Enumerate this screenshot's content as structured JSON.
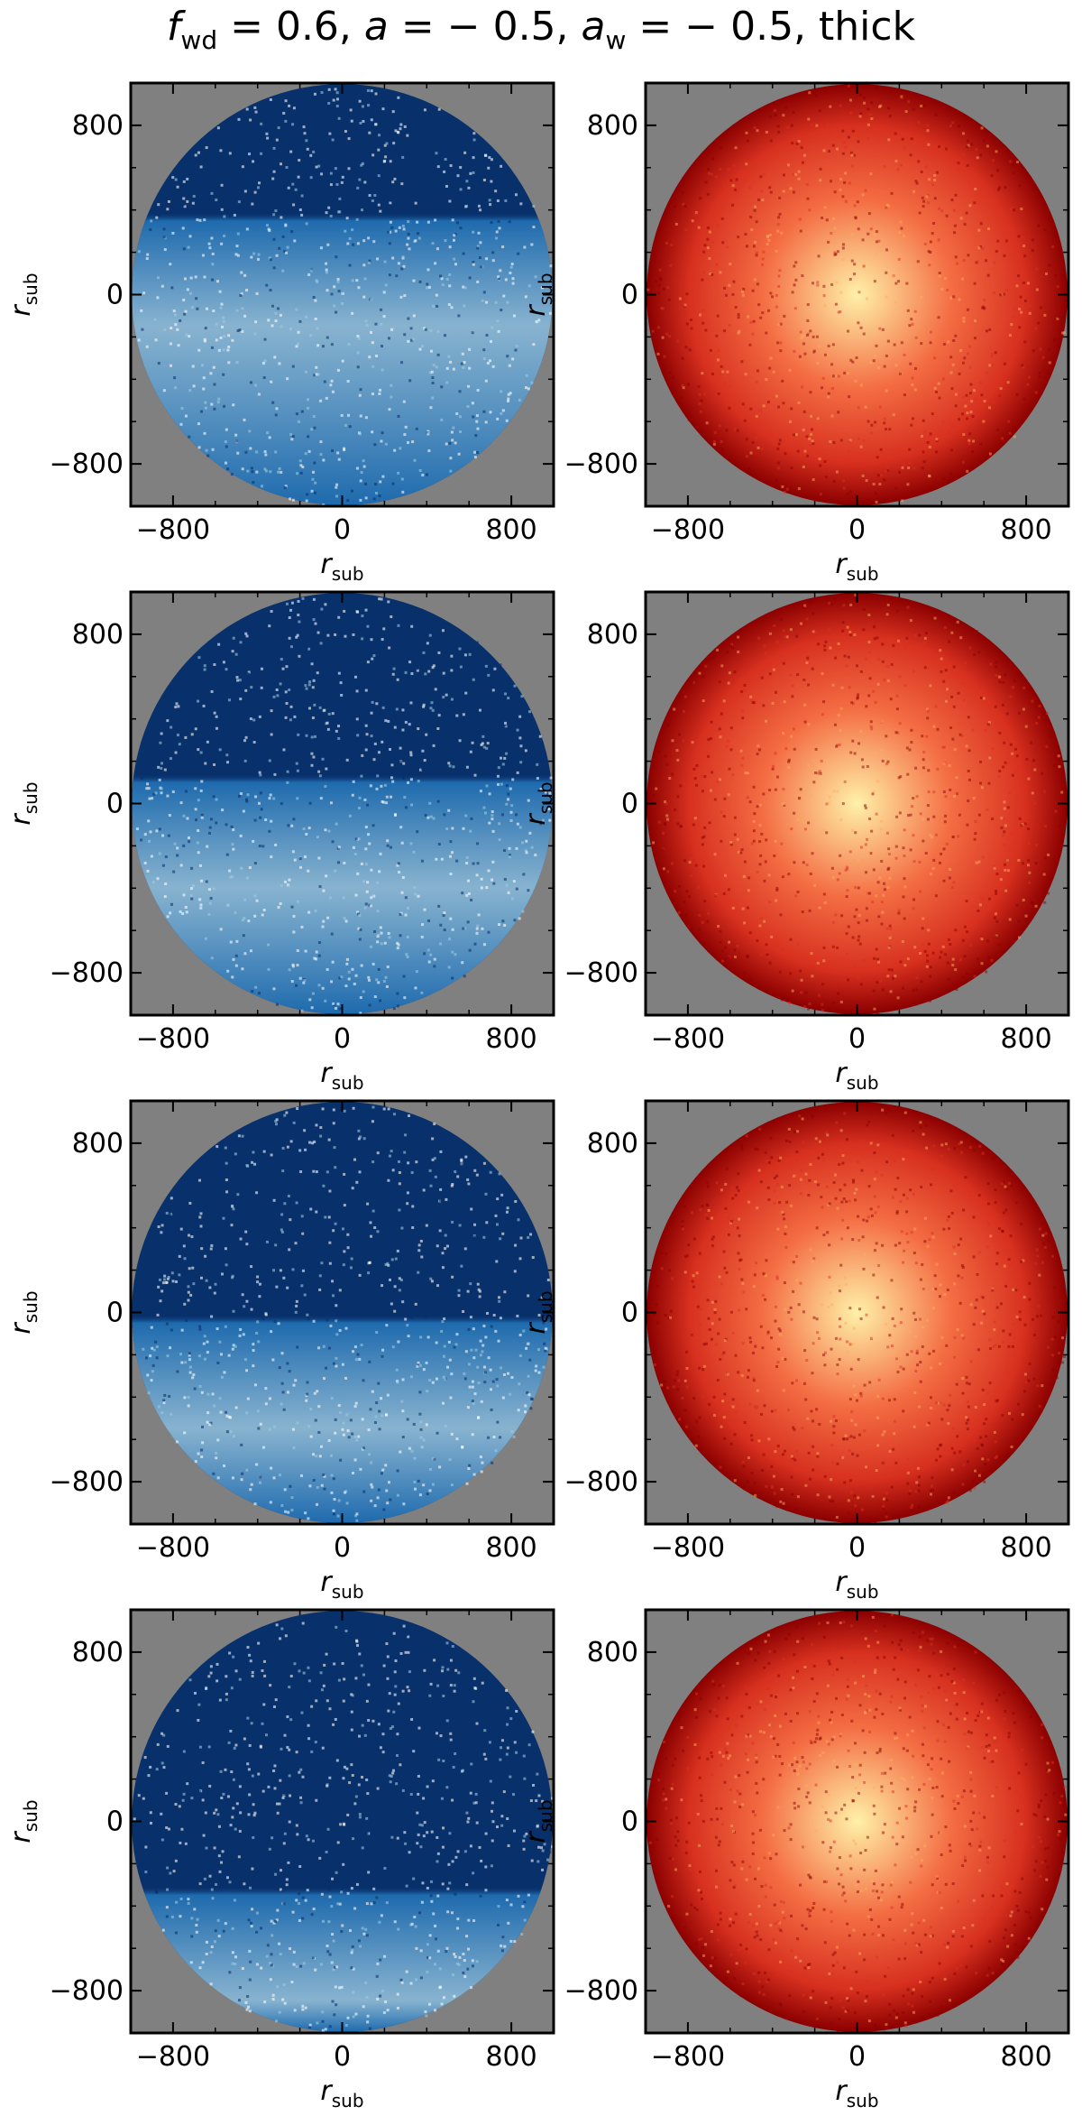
{
  "title": {
    "f_sym": "f",
    "f_sub": "wd",
    "f_val": " = 0.6, ",
    "a_sym": "a",
    "a_val": " = − 0.5, ",
    "aw_sym": "a",
    "aw_sub": "w",
    "aw_val": " = − 0.5, thick"
  },
  "colors": {
    "background": "#808080",
    "blue_dark": "#08306b",
    "blue_mid": "#2171b5",
    "blue_light": "#9ecae1",
    "red_dark": "#8b0000",
    "red_mid": "#d7301f",
    "red_light": "#fff1a8"
  },
  "chart_data": [
    {
      "type": "heatmap",
      "panel": "row1-left",
      "colormap": "Blues",
      "xlabel": "r_sub",
      "ylabel": "r_sub",
      "xlim": [
        -1000,
        1000
      ],
      "ylim": [
        -1000,
        1000
      ],
      "xticks": [
        -800,
        0,
        800
      ],
      "yticks": [
        -800,
        0,
        800
      ]
    },
    {
      "type": "heatmap",
      "panel": "row1-right",
      "colormap": "Reds/hot",
      "xlabel": "r_sub",
      "ylabel": "r_sub",
      "xlim": [
        -1000,
        1000
      ],
      "ylim": [
        -1000,
        1000
      ],
      "xticks": [
        -800,
        0,
        800
      ],
      "yticks": [
        -800,
        0,
        800
      ]
    },
    {
      "type": "heatmap",
      "panel": "row2-left",
      "colormap": "Blues",
      "xlabel": "r_sub",
      "ylabel": "r_sub",
      "xlim": [
        -1000,
        1000
      ],
      "ylim": [
        -1000,
        1000
      ],
      "xticks": [
        -800,
        0,
        800
      ],
      "yticks": [
        -800,
        0,
        800
      ]
    },
    {
      "type": "heatmap",
      "panel": "row2-right",
      "colormap": "Reds/hot",
      "xlabel": "r_sub",
      "ylabel": "r_sub",
      "xlim": [
        -1000,
        1000
      ],
      "ylim": [
        -1000,
        1000
      ],
      "xticks": [
        -800,
        0,
        800
      ],
      "yticks": [
        -800,
        0,
        800
      ]
    },
    {
      "type": "heatmap",
      "panel": "row3-left",
      "colormap": "Blues",
      "xlabel": "r_sub",
      "ylabel": "r_sub",
      "xlim": [
        -1000,
        1000
      ],
      "ylim": [
        -1000,
        1000
      ],
      "xticks": [
        -800,
        0,
        800
      ],
      "yticks": [
        -800,
        0,
        800
      ]
    },
    {
      "type": "heatmap",
      "panel": "row3-right",
      "colormap": "Reds/hot",
      "xlabel": "r_sub",
      "ylabel": "r_sub",
      "xlim": [
        -1000,
        1000
      ],
      "ylim": [
        -1000,
        1000
      ],
      "xticks": [
        -800,
        0,
        800
      ],
      "yticks": [
        -800,
        0,
        800
      ]
    },
    {
      "type": "heatmap",
      "panel": "row4-left",
      "colormap": "Blues",
      "xlabel": "r_sub",
      "ylabel": "r_sub",
      "xlim": [
        -1000,
        1000
      ],
      "ylim": [
        -1000,
        1000
      ],
      "xticks": [
        -800,
        0,
        800
      ],
      "yticks": [
        -800,
        0,
        800
      ]
    },
    {
      "type": "heatmap",
      "panel": "row4-right",
      "colormap": "Reds/hot",
      "xlabel": "r_sub",
      "ylabel": "r_sub",
      "xlim": [
        -1000,
        1000
      ],
      "ylim": [
        -1000,
        1000
      ],
      "xticks": [
        -800,
        0,
        800
      ],
      "yticks": [
        -800,
        0,
        800
      ]
    }
  ],
  "axis": {
    "label_main": "r",
    "label_sub": "sub",
    "tick_labels": [
      "−800",
      "0",
      "800"
    ]
  }
}
